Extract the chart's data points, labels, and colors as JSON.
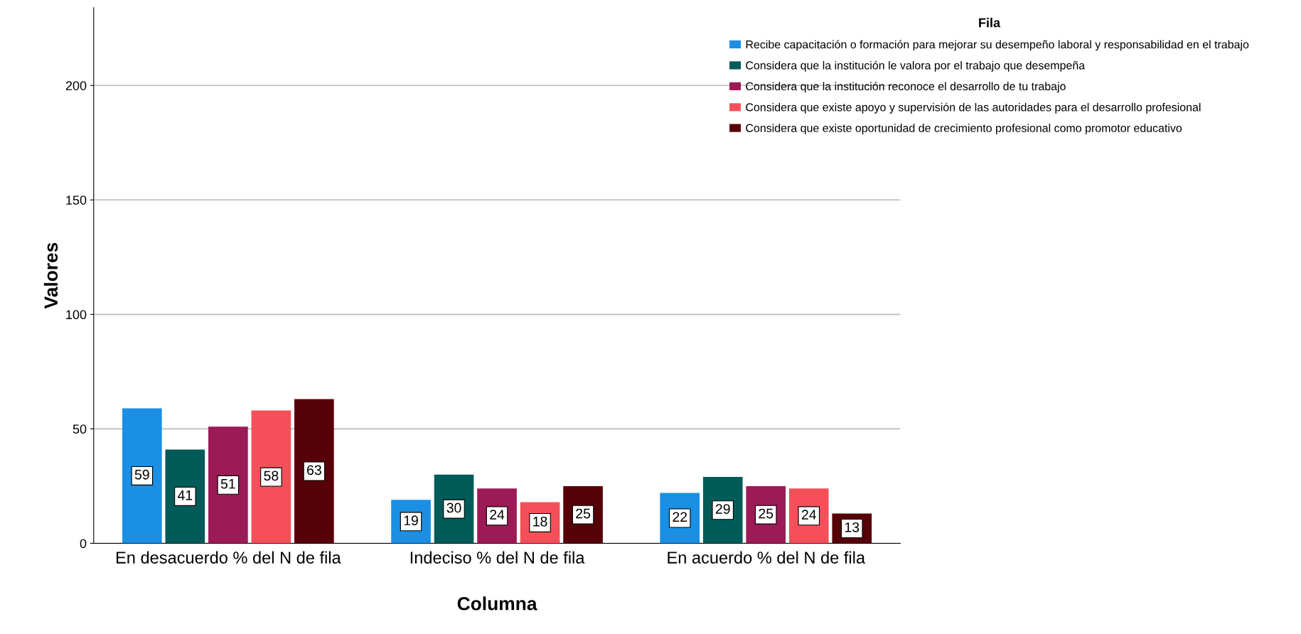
{
  "chart_data": {
    "type": "bar",
    "xlabel": "Columna",
    "ylabel": "Valores",
    "legend_title": "Fila",
    "categories": [
      "En desacuerdo % del N de fila",
      "Indeciso % del N de fila",
      "En acuerdo % del N de fila"
    ],
    "series": [
      {
        "name": "Recibe capacitación o formación para mejorar su desempeño laboral y responsabilidad en el trabajo",
        "color": "#1a8fe3",
        "values": [
          59,
          19,
          22
        ]
      },
      {
        "name": "Considera que la institución le valora por el trabajo que desempeña",
        "color": "#005b59",
        "values": [
          41,
          30,
          29
        ]
      },
      {
        "name": "Considera que la institución reconoce el desarrollo de tu trabajo",
        "color": "#9c1a55",
        "values": [
          51,
          24,
          25
        ]
      },
      {
        "name": "Considera que existe apoyo y supervisión de las autoridades para el desarrollo profesional",
        "color": "#f5505a",
        "values": [
          58,
          18,
          24
        ]
      },
      {
        "name": "Considera que existe oportunidad de crecimiento profesional como promotor educativo",
        "color": "#560008",
        "values": [
          63,
          25,
          13
        ]
      }
    ],
    "ylim": [
      0,
      234
    ],
    "yticks": [
      0,
      50,
      100,
      150,
      200
    ],
    "grid": "y",
    "data_labels": true,
    "legend": "top right"
  }
}
